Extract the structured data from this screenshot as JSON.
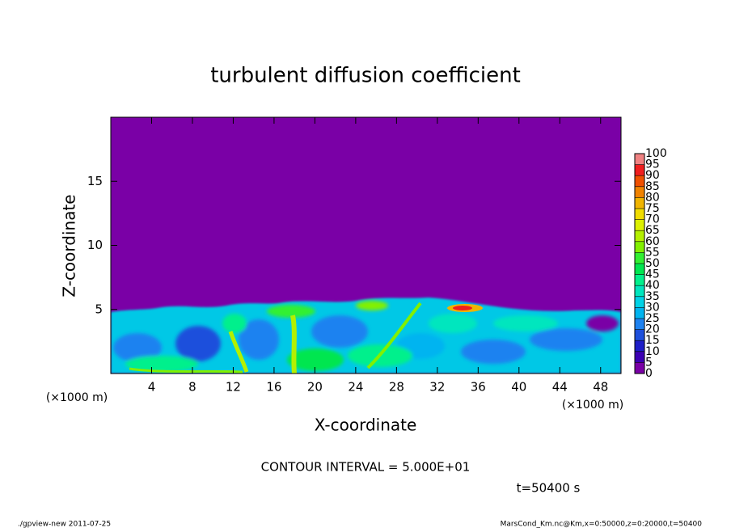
{
  "chart_data": {
    "type": "contour",
    "title": "turbulent diffusion coefficient",
    "x_label": "X-coordinate",
    "y_label": "Z-coordinate",
    "x_unit": "(×1000 m)",
    "y_unit": "(×1000 m)",
    "xlim": [
      0,
      50
    ],
    "ylim": [
      0,
      20
    ],
    "xticks": [
      4,
      8,
      12,
      16,
      20,
      24,
      28,
      32,
      36,
      40,
      44,
      48
    ],
    "yticks": [
      5,
      10,
      15
    ],
    "levels": [
      0,
      5,
      10,
      15,
      20,
      25,
      30,
      35,
      40,
      45,
      50,
      55,
      60,
      65,
      70,
      75,
      80,
      85,
      90,
      95,
      100
    ],
    "colors": [
      "#7a00a6",
      "#3c00b4",
      "#1e1ec8",
      "#1e50dc",
      "#1e82f0",
      "#00b4f0",
      "#00d2e6",
      "#00e6be",
      "#00f08c",
      "#00e650",
      "#32f032",
      "#82f000",
      "#b4f000",
      "#dcf000",
      "#f0dc00",
      "#f0b400",
      "#f08200",
      "#f05000",
      "#f01e1e",
      "#f08282"
    ],
    "annotations": [
      "CONTOUR INTERVAL = 5.000E+01",
      "t=50400 s"
    ],
    "footer_left": "./gpview-new  2011-07-25",
    "footer_right": "MarsCond_Km.nc@Km,x=0:50000,z=0:20000,t=50400"
  }
}
